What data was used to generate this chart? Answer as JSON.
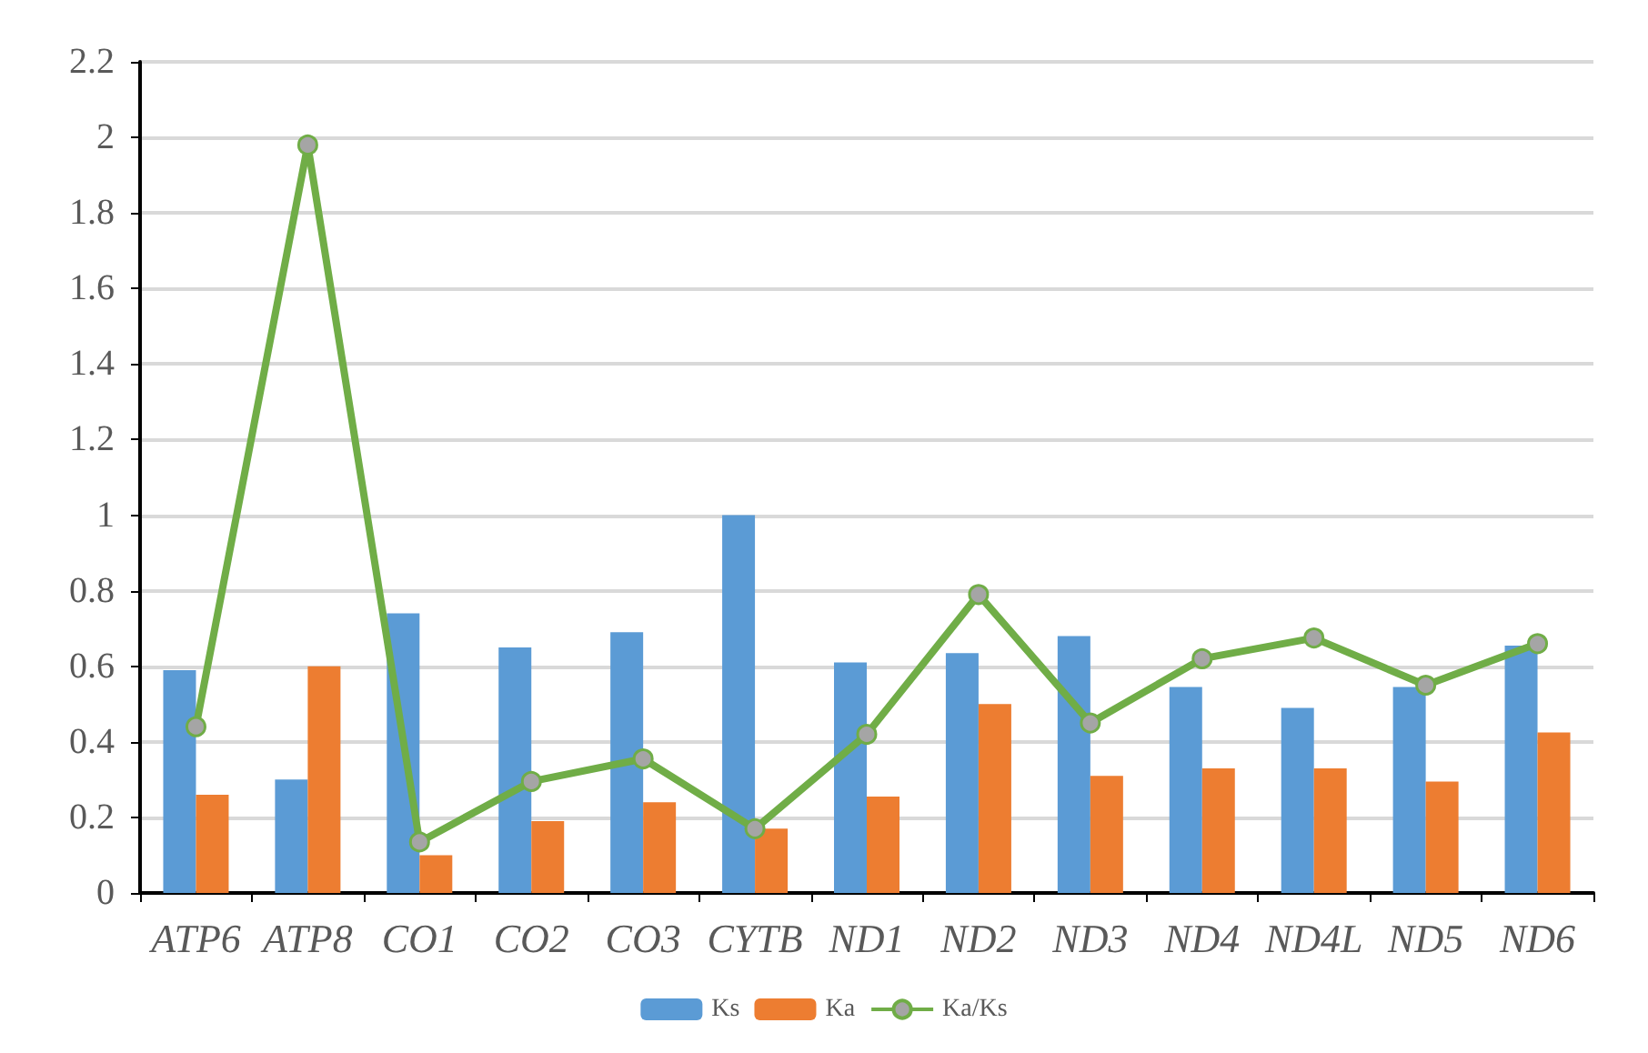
{
  "chart_data": {
    "type": "bar",
    "categories": [
      "ATP6",
      "ATP8",
      "CO1",
      "CO2",
      "CO3",
      "CYTB",
      "ND1",
      "ND2",
      "ND3",
      "ND4",
      "ND4L",
      "ND5",
      "ND6"
    ],
    "series": [
      {
        "name": "Ks",
        "color": "#5b9bd5",
        "values": [
          0.59,
          0.3,
          0.74,
          0.65,
          0.69,
          1.0,
          0.61,
          0.635,
          0.68,
          0.545,
          0.49,
          0.545,
          0.655
        ]
      },
      {
        "name": "Ka",
        "color": "#ed7d31",
        "values": [
          0.26,
          0.6,
          0.1,
          0.19,
          0.24,
          0.17,
          0.255,
          0.5,
          0.31,
          0.33,
          0.33,
          0.295,
          0.425
        ]
      },
      {
        "name": "Ka/Ks",
        "type": "line",
        "color": "#70ad47",
        "marker": "circle",
        "values": [
          0.44,
          1.98,
          0.135,
          0.295,
          0.355,
          0.17,
          0.42,
          0.79,
          0.45,
          0.62,
          0.675,
          0.55,
          0.66
        ]
      }
    ],
    "ylim": [
      0,
      2.2
    ],
    "yticks": [
      0,
      0.2,
      0.4,
      0.6,
      0.8,
      1,
      1.2,
      1.4,
      1.6,
      1.8,
      2,
      2.2
    ],
    "grid": "y",
    "legend": "bottom"
  }
}
